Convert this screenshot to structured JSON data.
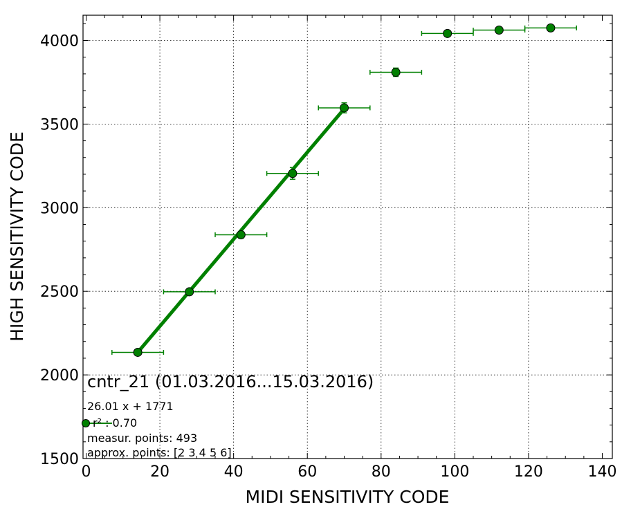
{
  "chart_data": {
    "type": "scatter",
    "title": "cntr_21 (01.03.2016...15.03.2016)",
    "xlabel": "MIDI SENSITIVITY CODE",
    "ylabel": "HIGH SENSITIVITY CODE",
    "xlim": [
      0,
      140
    ],
    "ylim": [
      1500,
      4150
    ],
    "xticks": [
      0,
      20,
      40,
      60,
      80,
      100,
      120,
      140
    ],
    "yticks": [
      1500,
      2000,
      2500,
      3000,
      3500,
      4000
    ],
    "grid": true,
    "color": "#008000",
    "points": [
      {
        "x": 14,
        "y": 2135,
        "xerr": 7,
        "yerr": 8
      },
      {
        "x": 28,
        "y": 2497,
        "xerr": 7,
        "yerr": 10
      },
      {
        "x": 42,
        "y": 2838,
        "xerr": 7,
        "yerr": 20
      },
      {
        "x": 56,
        "y": 3205,
        "xerr": 7,
        "yerr": 35
      },
      {
        "x": 70,
        "y": 3597,
        "xerr": 7,
        "yerr": 30
      },
      {
        "x": 84,
        "y": 3810,
        "xerr": 7,
        "yerr": 25
      },
      {
        "x": 98,
        "y": 4042,
        "xerr": 7,
        "yerr": 8
      },
      {
        "x": 112,
        "y": 4062,
        "xerr": 7,
        "yerr": 8
      },
      {
        "x": 126,
        "y": 4075,
        "xerr": 7,
        "yerr": 8
      }
    ],
    "fit_line": {
      "slope": 26.01,
      "intercept": 1771,
      "x_range": [
        14,
        70
      ]
    },
    "annotations": {
      "equation": "26.01 x + 1771",
      "r2": "r² : 0.70",
      "measur_points": "measur. points: 493",
      "approx_points": "approx. points: [2 3 4 5 6]"
    }
  }
}
